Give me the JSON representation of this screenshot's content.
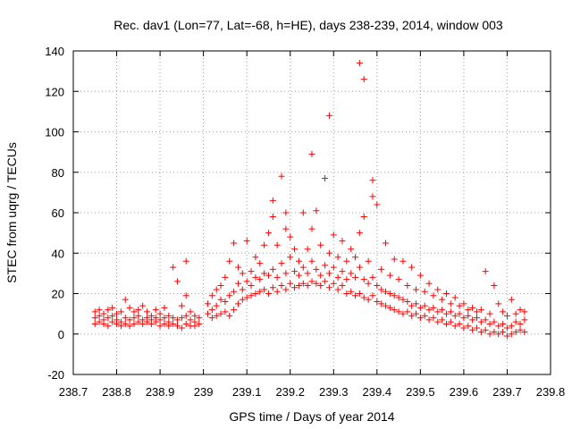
{
  "chart_data": {
    "type": "scatter",
    "title": "Rec. dav1 (Lon=77, Lat=-68, h=HE), days 238-239, 2014, window 003",
    "xlabel": "GPS time / Days of year 2014",
    "ylabel": "STEC from uqrg / TECUs",
    "xlim": [
      238.7,
      239.8
    ],
    "ylim": [
      -20,
      140
    ],
    "x_ticks": [
      238.7,
      238.8,
      238.9,
      239.0,
      239.1,
      239.2,
      239.3,
      239.4,
      239.5,
      239.6,
      239.7,
      239.8
    ],
    "x_tick_labels": [
      "238.7",
      "238.8",
      "238.9",
      "239",
      "239.1",
      "239.2",
      "239.3",
      "239.4",
      "239.5",
      "239.6",
      "239.7",
      "239.8"
    ],
    "y_ticks": [
      -20,
      0,
      20,
      40,
      60,
      80,
      100,
      120,
      140
    ],
    "y_tick_labels": [
      "-20",
      "0",
      "20",
      "40",
      "60",
      "80",
      "100",
      "120",
      "140"
    ],
    "grid": true,
    "marker": "+",
    "color": "#ff0000",
    "series": [
      {
        "name": "STEC",
        "points": [
          [
            238.75,
            5
          ],
          [
            238.75,
            8
          ],
          [
            238.75,
            11
          ],
          [
            238.76,
            6
          ],
          [
            238.76,
            9
          ],
          [
            238.76,
            12
          ],
          [
            238.77,
            5
          ],
          [
            238.77,
            7
          ],
          [
            238.77,
            10
          ],
          [
            238.78,
            4
          ],
          [
            238.78,
            8
          ],
          [
            238.78,
            12
          ],
          [
            238.79,
            6
          ],
          [
            238.79,
            9
          ],
          [
            238.79,
            13
          ],
          [
            238.8,
            5
          ],
          [
            238.8,
            7
          ],
          [
            238.8,
            10
          ],
          [
            238.81,
            4
          ],
          [
            238.81,
            6
          ],
          [
            238.81,
            11
          ],
          [
            238.82,
            5
          ],
          [
            238.82,
            8
          ],
          [
            238.82,
            17
          ],
          [
            238.83,
            4
          ],
          [
            238.83,
            7
          ],
          [
            238.83,
            13
          ],
          [
            238.84,
            5
          ],
          [
            238.84,
            8
          ],
          [
            238.84,
            11
          ],
          [
            238.85,
            6
          ],
          [
            238.85,
            9
          ],
          [
            238.85,
            12
          ],
          [
            238.86,
            5
          ],
          [
            238.86,
            7
          ],
          [
            238.86,
            14
          ],
          [
            238.87,
            6
          ],
          [
            238.87,
            8
          ],
          [
            238.87,
            11
          ],
          [
            238.88,
            5
          ],
          [
            238.88,
            7
          ],
          [
            238.88,
            9
          ],
          [
            238.89,
            6
          ],
          [
            238.89,
            8
          ],
          [
            238.89,
            12
          ],
          [
            238.9,
            4
          ],
          [
            238.9,
            7
          ],
          [
            238.9,
            10
          ],
          [
            238.91,
            5
          ],
          [
            238.91,
            8
          ],
          [
            238.91,
            13
          ],
          [
            238.92,
            4
          ],
          [
            238.92,
            6
          ],
          [
            238.92,
            9
          ],
          [
            238.93,
            5
          ],
          [
            238.93,
            8
          ],
          [
            238.93,
            33
          ],
          [
            238.94,
            4
          ],
          [
            238.94,
            7
          ],
          [
            238.94,
            26
          ],
          [
            238.95,
            3
          ],
          [
            238.95,
            8
          ],
          [
            238.95,
            14
          ],
          [
            238.96,
            5
          ],
          [
            238.96,
            9
          ],
          [
            238.96,
            36
          ],
          [
            238.96,
            19
          ],
          [
            238.97,
            4
          ],
          [
            238.97,
            7
          ],
          [
            238.97,
            11
          ],
          [
            238.98,
            4
          ],
          [
            238.98,
            6
          ],
          [
            238.98,
            9
          ],
          [
            238.99,
            5
          ],
          [
            238.99,
            8
          ],
          [
            239.01,
            10
          ],
          [
            239.01,
            15
          ],
          [
            239.02,
            8
          ],
          [
            239.02,
            12
          ],
          [
            239.02,
            19
          ],
          [
            239.03,
            9
          ],
          [
            239.03,
            14
          ],
          [
            239.03,
            22
          ],
          [
            239.04,
            10
          ],
          [
            239.04,
            17
          ],
          [
            239.04,
            24
          ],
          [
            239.05,
            11
          ],
          [
            239.05,
            16
          ],
          [
            239.05,
            28
          ],
          [
            239.06,
            9
          ],
          [
            239.06,
            19
          ],
          [
            239.06,
            36
          ],
          [
            239.07,
            12
          ],
          [
            239.07,
            21
          ],
          [
            239.07,
            45
          ],
          [
            239.08,
            15
          ],
          [
            239.08,
            25
          ],
          [
            239.08,
            33
          ],
          [
            239.09,
            17
          ],
          [
            239.09,
            22
          ],
          [
            239.09,
            30
          ],
          [
            239.1,
            18
          ],
          [
            239.1,
            26
          ],
          [
            239.1,
            46
          ],
          [
            239.11,
            19
          ],
          [
            239.11,
            24
          ],
          [
            239.11,
            31
          ],
          [
            239.12,
            20
          ],
          [
            239.12,
            28
          ],
          [
            239.12,
            38
          ],
          [
            239.13,
            21
          ],
          [
            239.13,
            27
          ],
          [
            239.13,
            35
          ],
          [
            239.14,
            22
          ],
          [
            239.14,
            30
          ],
          [
            239.14,
            44
          ],
          [
            239.15,
            20
          ],
          [
            239.15,
            29
          ],
          [
            239.15,
            50
          ],
          [
            239.16,
            23
          ],
          [
            239.16,
            32
          ],
          [
            239.16,
            66
          ],
          [
            239.16,
            58
          ],
          [
            239.17,
            21
          ],
          [
            239.17,
            28
          ],
          [
            239.17,
            44
          ],
          [
            239.18,
            24
          ],
          [
            239.18,
            35
          ],
          [
            239.18,
            78
          ],
          [
            239.19,
            22
          ],
          [
            239.19,
            30
          ],
          [
            239.19,
            52
          ],
          [
            239.19,
            60
          ],
          [
            239.2,
            25
          ],
          [
            239.2,
            38
          ],
          [
            239.2,
            48
          ],
          [
            239.21,
            23
          ],
          [
            239.21,
            31
          ],
          [
            239.21,
            42
          ],
          [
            239.22,
            24
          ],
          [
            239.22,
            29
          ],
          [
            239.22,
            36
          ],
          [
            239.23,
            25
          ],
          [
            239.23,
            33
          ],
          [
            239.23,
            60
          ],
          [
            239.24,
            24
          ],
          [
            239.24,
            30
          ],
          [
            239.24,
            42
          ],
          [
            239.25,
            26
          ],
          [
            239.25,
            36
          ],
          [
            239.25,
            89
          ],
          [
            239.25,
            52
          ],
          [
            239.26,
            25
          ],
          [
            239.26,
            32
          ],
          [
            239.26,
            61
          ],
          [
            239.27,
            24
          ],
          [
            239.27,
            29
          ],
          [
            239.27,
            44
          ],
          [
            239.28,
            26
          ],
          [
            239.28,
            34
          ],
          [
            239.28,
            77
          ],
          [
            239.29,
            23
          ],
          [
            239.29,
            30
          ],
          [
            239.29,
            40
          ],
          [
            239.29,
            108
          ],
          [
            239.3,
            25
          ],
          [
            239.3,
            33
          ],
          [
            239.3,
            49
          ],
          [
            239.31,
            22
          ],
          [
            239.31,
            28
          ],
          [
            239.31,
            38
          ],
          [
            239.32,
            24
          ],
          [
            239.32,
            31
          ],
          [
            239.32,
            46
          ],
          [
            239.33,
            20
          ],
          [
            239.33,
            27
          ],
          [
            239.33,
            36
          ],
          [
            239.34,
            21
          ],
          [
            239.34,
            30
          ],
          [
            239.34,
            42
          ],
          [
            239.35,
            19
          ],
          [
            239.35,
            28
          ],
          [
            239.35,
            38
          ],
          [
            239.36,
            20
          ],
          [
            239.36,
            33
          ],
          [
            239.36,
            50
          ],
          [
            239.36,
            134
          ],
          [
            239.37,
            18
          ],
          [
            239.37,
            27
          ],
          [
            239.37,
            126
          ],
          [
            239.37,
            58
          ],
          [
            239.38,
            17
          ],
          [
            239.38,
            25
          ],
          [
            239.38,
            36
          ],
          [
            239.39,
            19
          ],
          [
            239.39,
            28
          ],
          [
            239.39,
            76
          ],
          [
            239.39,
            68
          ],
          [
            239.4,
            16
          ],
          [
            239.4,
            24
          ],
          [
            239.4,
            64
          ],
          [
            239.41,
            15
          ],
          [
            239.41,
            22
          ],
          [
            239.41,
            32
          ],
          [
            239.42,
            14
          ],
          [
            239.42,
            21
          ],
          [
            239.42,
            45
          ],
          [
            239.43,
            13
          ],
          [
            239.43,
            20
          ],
          [
            239.43,
            29
          ],
          [
            239.44,
            12
          ],
          [
            239.44,
            19
          ],
          [
            239.44,
            37
          ],
          [
            239.45,
            11
          ],
          [
            239.45,
            18
          ],
          [
            239.45,
            27
          ],
          [
            239.46,
            10
          ],
          [
            239.46,
            17
          ],
          [
            239.46,
            36
          ],
          [
            239.47,
            11
          ],
          [
            239.47,
            16
          ],
          [
            239.47,
            24
          ],
          [
            239.48,
            9
          ],
          [
            239.48,
            14
          ],
          [
            239.48,
            33
          ],
          [
            239.49,
            10
          ],
          [
            239.49,
            15
          ],
          [
            239.49,
            22
          ],
          [
            239.5,
            8
          ],
          [
            239.5,
            13
          ],
          [
            239.5,
            29
          ],
          [
            239.51,
            9
          ],
          [
            239.51,
            14
          ],
          [
            239.51,
            21
          ],
          [
            239.52,
            7
          ],
          [
            239.52,
            12
          ],
          [
            239.52,
            25
          ],
          [
            239.53,
            8
          ],
          [
            239.53,
            13
          ],
          [
            239.53,
            19
          ],
          [
            239.54,
            6
          ],
          [
            239.54,
            11
          ],
          [
            239.54,
            22
          ],
          [
            239.55,
            7
          ],
          [
            239.55,
            12
          ],
          [
            239.55,
            17
          ],
          [
            239.56,
            5
          ],
          [
            239.56,
            10
          ],
          [
            239.56,
            20
          ],
          [
            239.57,
            6
          ],
          [
            239.57,
            11
          ],
          [
            239.57,
            15
          ],
          [
            239.58,
            4
          ],
          [
            239.58,
            9
          ],
          [
            239.58,
            18
          ],
          [
            239.59,
            5
          ],
          [
            239.59,
            10
          ],
          [
            239.59,
            14
          ],
          [
            239.6,
            3
          ],
          [
            239.6,
            8
          ],
          [
            239.6,
            15
          ],
          [
            239.61,
            4
          ],
          [
            239.61,
            9
          ],
          [
            239.61,
            12
          ],
          [
            239.62,
            2
          ],
          [
            239.62,
            7
          ],
          [
            239.62,
            13
          ],
          [
            239.63,
            3
          ],
          [
            239.63,
            8
          ],
          [
            239.63,
            11
          ],
          [
            239.64,
            1
          ],
          [
            239.64,
            6
          ],
          [
            239.64,
            12
          ],
          [
            239.65,
            2
          ],
          [
            239.65,
            7
          ],
          [
            239.65,
            31
          ],
          [
            239.66,
            0
          ],
          [
            239.66,
            5
          ],
          [
            239.66,
            10
          ],
          [
            239.67,
            1
          ],
          [
            239.67,
            6
          ],
          [
            239.67,
            24
          ],
          [
            239.68,
            0
          ],
          [
            239.68,
            4
          ],
          [
            239.68,
            15
          ],
          [
            239.69,
            1
          ],
          [
            239.69,
            5
          ],
          [
            239.69,
            11
          ],
          [
            239.7,
            -1
          ],
          [
            239.7,
            3
          ],
          [
            239.7,
            9
          ],
          [
            239.71,
            0
          ],
          [
            239.71,
            4
          ],
          [
            239.71,
            17
          ],
          [
            239.72,
            1
          ],
          [
            239.72,
            6
          ],
          [
            239.72,
            10
          ],
          [
            239.73,
            2
          ],
          [
            239.73,
            5
          ],
          [
            239.73,
            12
          ],
          [
            239.74,
            1
          ],
          [
            239.74,
            7
          ],
          [
            239.74,
            11
          ]
        ]
      }
    ]
  }
}
